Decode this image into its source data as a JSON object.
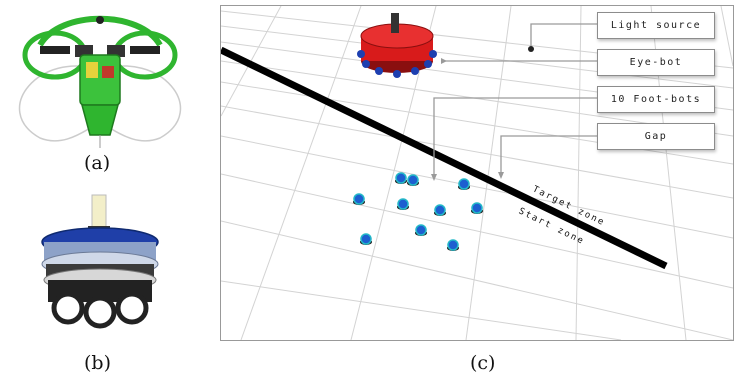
{
  "captions": {
    "a": "(a)",
    "b": "(b)",
    "c": "(c)"
  },
  "scene": {
    "labels": {
      "light_source": "Light source",
      "eye_bot": "Eye-bot",
      "foot_bots": "10 Foot-bots",
      "gap": "Gap"
    },
    "zones": {
      "target": "Target zone",
      "start": "Start zone"
    },
    "foot_bot_count": 10
  },
  "colors": {
    "eye_bot_body": "#d81b1b",
    "foot_bot_body": "#1d5fd0",
    "foot_bot_ring": "#23b8c8",
    "gap_line": "#000000",
    "grid": "#cfcfcf",
    "eye_bot_frame": "#2fb52f",
    "foot_bot_top": "#1f3fa8"
  }
}
